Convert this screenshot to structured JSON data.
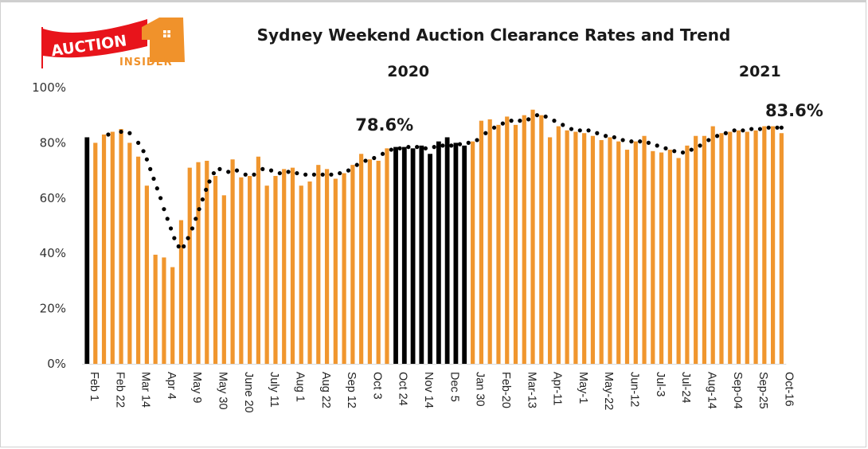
{
  "logo": {
    "primary": "AUCTION",
    "secondary": "INSIDER",
    "colors": {
      "red": "#e8141b",
      "orange": "#f0922b"
    }
  },
  "chart_data": {
    "type": "bar",
    "title": "Sydney Weekend Auction Clearance Rates and Trend",
    "year_labels": [
      {
        "text": "2020",
        "at_index": 36
      },
      {
        "text": "2021",
        "at_index": 77
      }
    ],
    "annotations": [
      {
        "text": "78.6%",
        "at_index": 36
      },
      {
        "text": "83.6%",
        "at_index": 81
      }
    ],
    "xlabel": "",
    "ylabel": "",
    "ylim": [
      0,
      100
    ],
    "y_ticks": [
      "0%",
      "20%",
      "40%",
      "60%",
      "80%",
      "100%"
    ],
    "y_tick_values": [
      0,
      20,
      40,
      60,
      80,
      100
    ],
    "grid": false,
    "legend": "none",
    "colors": {
      "bar": "#f0962e",
      "highlight_bar": "#000000",
      "trend": "#000000"
    },
    "x_tick_labels": [
      {
        "index": 0,
        "label": "Feb 1"
      },
      {
        "index": 3,
        "label": "Feb 22"
      },
      {
        "index": 6,
        "label": "Mar 14"
      },
      {
        "index": 9,
        "label": "Apr 4"
      },
      {
        "index": 12,
        "label": "May 9"
      },
      {
        "index": 15,
        "label": "May 30"
      },
      {
        "index": 18,
        "label": "June 20"
      },
      {
        "index": 21,
        "label": "July 11"
      },
      {
        "index": 24,
        "label": "Aug 1"
      },
      {
        "index": 27,
        "label": "Aug 22"
      },
      {
        "index": 30,
        "label": "Sep 12"
      },
      {
        "index": 33,
        "label": "Oct 3"
      },
      {
        "index": 36,
        "label": "Oct 24"
      },
      {
        "index": 39,
        "label": "Nov 14"
      },
      {
        "index": 42,
        "label": "Dec 5"
      },
      {
        "index": 45,
        "label": "Jan 30"
      },
      {
        "index": 48,
        "label": "Feb-20"
      },
      {
        "index": 51,
        "label": "Mar-13"
      },
      {
        "index": 54,
        "label": "Apr-11"
      },
      {
        "index": 57,
        "label": "May-1"
      },
      {
        "index": 60,
        "label": "May-22"
      },
      {
        "index": 63,
        "label": "Jun-12"
      },
      {
        "index": 66,
        "label": "Jul-3"
      },
      {
        "index": 69,
        "label": "Jul-24"
      },
      {
        "index": 72,
        "label": "Aug-14"
      },
      {
        "index": 75,
        "label": "Sep-04"
      },
      {
        "index": 78,
        "label": "Sep-25"
      },
      {
        "index": 81,
        "label": "Oct-16"
      }
    ],
    "highlight_indices": [
      0,
      36,
      37,
      38,
      39,
      40,
      41,
      42,
      43,
      44
    ],
    "values": [
      82,
      80,
      83,
      84,
      85,
      80,
      75,
      64.5,
      39.5,
      38.5,
      35,
      52,
      71,
      73,
      73.5,
      68,
      61,
      74,
      67.5,
      68,
      75,
      64.5,
      68,
      70.5,
      71,
      64.5,
      66,
      72,
      70.5,
      67,
      69,
      72,
      76,
      74,
      73.5,
      78,
      78.5,
      78.5,
      78,
      79,
      76,
      80.5,
      82,
      80,
      79,
      80.5,
      88,
      88.5,
      86.5,
      89.5,
      86.5,
      90,
      92,
      90,
      82,
      86,
      84.5,
      84,
      83.5,
      82.5,
      81,
      82,
      80.5,
      77.5,
      80.5,
      82.5,
      77,
      76.5,
      77.5,
      74.5,
      79,
      82.5,
      82.5,
      86,
      83.5,
      84,
      84.5,
      84,
      84.5,
      86,
      86,
      83.5
    ],
    "trend": [
      {
        "x": 2.5,
        "y": 83
      },
      {
        "x": 4,
        "y": 84
      },
      {
        "x": 5,
        "y": 83.5
      },
      {
        "x": 6,
        "y": 80
      },
      {
        "x": 6.6,
        "y": 77
      },
      {
        "x": 7,
        "y": 74
      },
      {
        "x": 7.4,
        "y": 70.5
      },
      {
        "x": 7.8,
        "y": 67
      },
      {
        "x": 8.2,
        "y": 63.5
      },
      {
        "x": 8.6,
        "y": 60
      },
      {
        "x": 9,
        "y": 56
      },
      {
        "x": 9.4,
        "y": 52.5
      },
      {
        "x": 9.8,
        "y": 49
      },
      {
        "x": 10.2,
        "y": 45.5
      },
      {
        "x": 10.7,
        "y": 42.5
      },
      {
        "x": 11.3,
        "y": 42.5
      },
      {
        "x": 11.8,
        "y": 45.5
      },
      {
        "x": 12.3,
        "y": 49
      },
      {
        "x": 12.7,
        "y": 52.5
      },
      {
        "x": 13.1,
        "y": 56
      },
      {
        "x": 13.5,
        "y": 59.5
      },
      {
        "x": 13.9,
        "y": 63
      },
      {
        "x": 14.3,
        "y": 66
      },
      {
        "x": 14.8,
        "y": 69
      },
      {
        "x": 15.5,
        "y": 70.5
      },
      {
        "x": 16.5,
        "y": 69.5
      },
      {
        "x": 17.5,
        "y": 70
      },
      {
        "x": 18.5,
        "y": 68.5
      },
      {
        "x": 19.5,
        "y": 68.5
      },
      {
        "x": 20.5,
        "y": 70.5
      },
      {
        "x": 21.5,
        "y": 70
      },
      {
        "x": 22.5,
        "y": 69
      },
      {
        "x": 23.5,
        "y": 69.5
      },
      {
        "x": 24.5,
        "y": 69
      },
      {
        "x": 25.5,
        "y": 68.5
      },
      {
        "x": 26.5,
        "y": 68.5
      },
      {
        "x": 27.5,
        "y": 68.5
      },
      {
        "x": 28.5,
        "y": 68.5
      },
      {
        "x": 29.5,
        "y": 69
      },
      {
        "x": 30.5,
        "y": 70
      },
      {
        "x": 31.5,
        "y": 72
      },
      {
        "x": 32.5,
        "y": 73.5
      },
      {
        "x": 33.5,
        "y": 74.5
      },
      {
        "x": 34.5,
        "y": 76
      },
      {
        "x": 35.5,
        "y": 77.5
      },
      {
        "x": 36.5,
        "y": 78
      },
      {
        "x": 37.5,
        "y": 78.5
      },
      {
        "x": 38.5,
        "y": 78.5
      },
      {
        "x": 39.5,
        "y": 78
      },
      {
        "x": 40.5,
        "y": 78.5
      },
      {
        "x": 41.5,
        "y": 79
      },
      {
        "x": 42.5,
        "y": 79
      },
      {
        "x": 43.5,
        "y": 79.5
      },
      {
        "x": 44.5,
        "y": 80
      },
      {
        "x": 45.5,
        "y": 81
      },
      {
        "x": 46.5,
        "y": 83.5
      },
      {
        "x": 47.5,
        "y": 85.5
      },
      {
        "x": 48.5,
        "y": 87
      },
      {
        "x": 49.5,
        "y": 88
      },
      {
        "x": 50.5,
        "y": 88
      },
      {
        "x": 51.5,
        "y": 88.5
      },
      {
        "x": 52.5,
        "y": 90
      },
      {
        "x": 53.5,
        "y": 89.5
      },
      {
        "x": 54.5,
        "y": 88
      },
      {
        "x": 55.5,
        "y": 86.5
      },
      {
        "x": 56.5,
        "y": 85
      },
      {
        "x": 57.5,
        "y": 84.5
      },
      {
        "x": 58.5,
        "y": 84.5
      },
      {
        "x": 59.5,
        "y": 83.5
      },
      {
        "x": 60.5,
        "y": 82.5
      },
      {
        "x": 61.5,
        "y": 82
      },
      {
        "x": 62.5,
        "y": 81
      },
      {
        "x": 63.5,
        "y": 80.5
      },
      {
        "x": 64.5,
        "y": 80.5
      },
      {
        "x": 65.5,
        "y": 80
      },
      {
        "x": 66.5,
        "y": 79
      },
      {
        "x": 67.5,
        "y": 78
      },
      {
        "x": 68.5,
        "y": 77
      },
      {
        "x": 69.5,
        "y": 76.5
      },
      {
        "x": 70.5,
        "y": 77.5
      },
      {
        "x": 71.5,
        "y": 79
      },
      {
        "x": 72.5,
        "y": 81
      },
      {
        "x": 73.5,
        "y": 82.5
      },
      {
        "x": 74.5,
        "y": 83.5
      },
      {
        "x": 75.5,
        "y": 84.5
      },
      {
        "x": 76.5,
        "y": 84.5
      },
      {
        "x": 77.5,
        "y": 85
      },
      {
        "x": 78.5,
        "y": 85
      },
      {
        "x": 79.5,
        "y": 85.5
      },
      {
        "x": 80.5,
        "y": 85.5
      },
      {
        "x": 81,
        "y": 85.5
      }
    ]
  }
}
